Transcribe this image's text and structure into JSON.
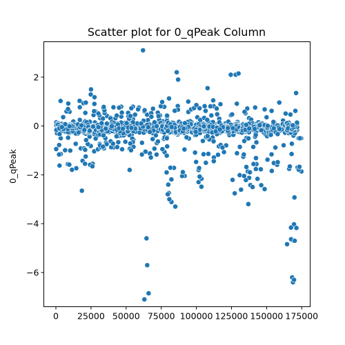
{
  "chart_data": {
    "type": "scatter",
    "title": "Scatter plot for 0_qPeak Column",
    "xlabel": "",
    "ylabel": "0_qPeak",
    "xlim": [
      -8600,
      181000
    ],
    "ylim": [
      -7.4,
      3.45
    ],
    "grid": false,
    "legend": "none",
    "x_ticks": [
      0,
      25000,
      50000,
      75000,
      100000,
      125000,
      150000,
      175000
    ],
    "x_tick_labels": [
      "0",
      "25000",
      "50000",
      "75000",
      "100000",
      "125000",
      "150000",
      "175000"
    ],
    "y_ticks": [
      -6,
      -4,
      -2,
      0,
      2
    ],
    "y_tick_labels": [
      "−6",
      "−4",
      "−2",
      "0",
      "2"
    ],
    "series": [
      {
        "color": "#1f77b4",
        "outliers": {
          "x": [
            62000,
            64500,
            65000,
            66000,
            63000,
            18500,
            86000,
            87000,
            168200,
            168800,
            169500,
            171000,
            124500,
            128000,
            130000,
            137000,
            140000,
            80000,
            85000,
            108000,
            112000,
            25000,
            45000,
            52500,
            170000
          ],
          "y": [
            3.1,
            -4.6,
            -5.7,
            -6.85,
            -7.1,
            -2.65,
            2.2,
            1.9,
            -6.2,
            -6.4,
            -6.3,
            1.35,
            2.1,
            2.1,
            2.15,
            -3.2,
            -2.5,
            -2.4,
            -3.3,
            1.55,
            1.05,
            1.5,
            0.75,
            -1.8,
            -4.7
          ]
        },
        "segments": [
          {
            "x": [
              0,
              30000
            ],
            "y": [
              -1.9,
              1.3
            ]
          },
          {
            "x": [
              30000,
              60000
            ],
            "y": [
              -1.0,
              0.8
            ]
          },
          {
            "x": [
              60000,
              80000
            ],
            "y": [
              -1.3,
              1.0
            ]
          },
          {
            "x": [
              78000,
              88000
            ],
            "y": [
              -3.4,
              1.6
            ]
          },
          {
            "x": [
              88000,
              105000
            ],
            "y": [
              -2.5,
              1.0
            ]
          },
          {
            "x": [
              105000,
              122000
            ],
            "y": [
              -1.6,
              0.9
            ]
          },
          {
            "x": [
              122000,
              132000
            ],
            "y": [
              -2.8,
              2.1
            ]
          },
          {
            "x": [
              132000,
              150000
            ],
            "y": [
              -2.6,
              0.8
            ]
          },
          {
            "x": [
              150000,
              164000
            ],
            "y": [
              -2.0,
              1.0
            ]
          },
          {
            "x": [
              164000,
              172000
            ],
            "y": [
              -4.9,
              0.7
            ]
          },
          {
            "x": [
              172000,
              175000
            ],
            "y": [
              -2.3,
              -0.5
            ]
          }
        ]
      }
    ]
  }
}
